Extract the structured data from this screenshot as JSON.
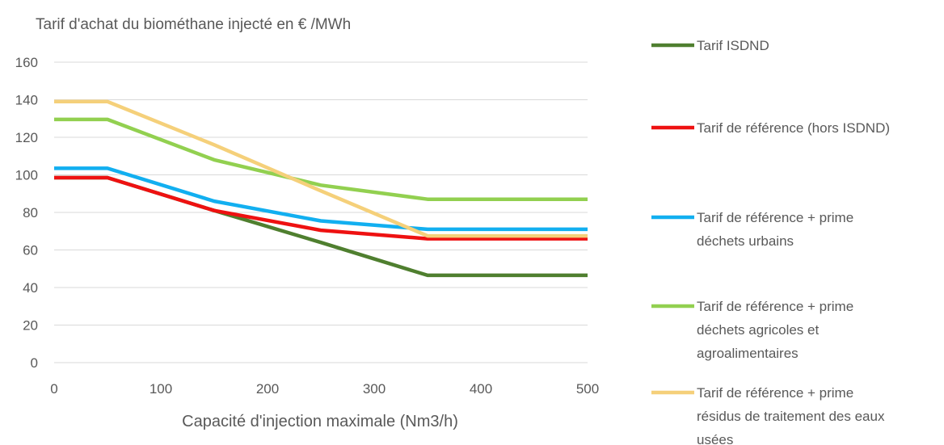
{
  "chart_data": {
    "type": "line",
    "title": "Tarif d'achat du biométhane injecté en € /MWh",
    "xlabel": "Capacité d'injection maximale (Nm3/h)",
    "ylabel": "",
    "xlim": [
      0,
      500
    ],
    "ylim": [
      0,
      160
    ],
    "x_ticks": [
      0,
      100,
      200,
      300,
      400,
      500
    ],
    "y_ticks": [
      0,
      20,
      40,
      60,
      80,
      100,
      120,
      140,
      160
    ],
    "grid": "horizontal",
    "legend_position": "right",
    "x": [
      0,
      50,
      150,
      250,
      350,
      500
    ],
    "series": [
      {
        "name": "Tarif ISDND",
        "color": "#4f7f2f",
        "values": [
          98.5,
          98.5,
          81,
          64,
          46.5,
          46.5
        ]
      },
      {
        "name": "Tarif de référence (hors ISDND)",
        "color": "#ee1111",
        "values": [
          98.5,
          98.5,
          81,
          70.5,
          66,
          66
        ]
      },
      {
        "name": "Tarif de référence + prime déchets urbains",
        "color": "#12aff0",
        "values": [
          103.5,
          103.5,
          86,
          75.5,
          71,
          71
        ]
      },
      {
        "name": "Tarif de référence + prime déchets agricoles et agroalimentaires",
        "color": "#92d050",
        "values": [
          129.5,
          129.5,
          108,
          94.5,
          87,
          87
        ]
      },
      {
        "name": "Tarif de référence + prime résidus de traitement des eaux usées",
        "color": "#f5d07a",
        "values": [
          139,
          139,
          116,
          91.5,
          67.5,
          67.5
        ]
      }
    ],
    "legend_lines": [
      [
        "Tarif ISDND"
      ],
      [
        "Tarif de référence (hors ISDND)"
      ],
      [
        "Tarif de référence + prime",
        "déchets urbains"
      ],
      [
        "Tarif de référence + prime",
        "déchets agricoles et",
        "agroalimentaires"
      ],
      [
        "Tarif de référence + prime",
        "résidus de traitement des eaux",
        "usées"
      ]
    ]
  }
}
